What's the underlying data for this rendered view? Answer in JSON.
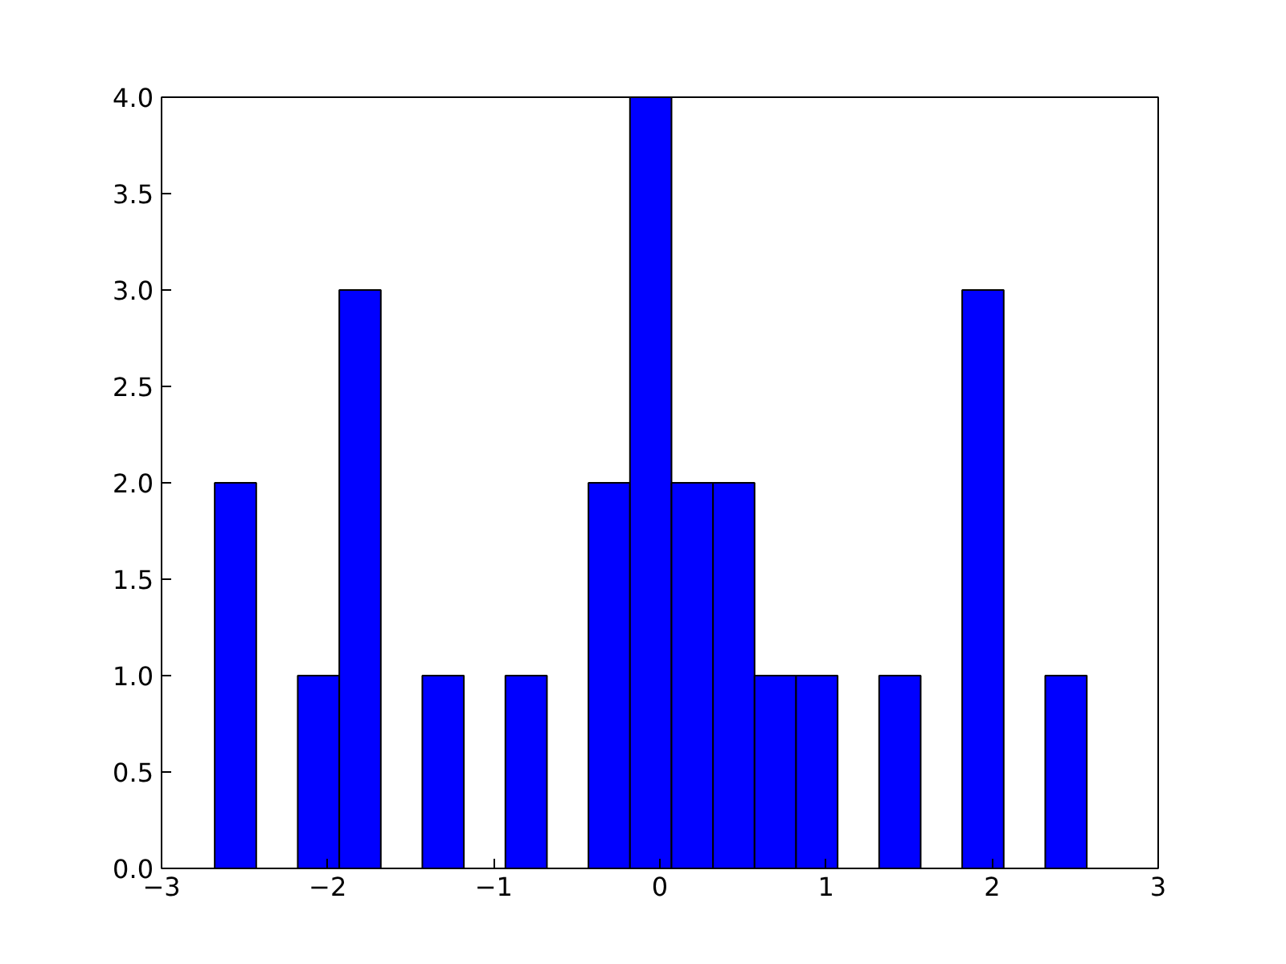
{
  "chart_data": {
    "type": "histogram",
    "color": "#0000ff",
    "bins": [
      -2.68,
      -2.43,
      -2.18,
      -1.93,
      -1.68,
      -1.43,
      -1.18,
      -0.93,
      -0.68,
      -0.43,
      -0.18,
      0.07,
      0.32,
      0.57,
      0.82,
      1.07,
      1.32,
      1.57,
      1.82,
      2.07,
      2.32,
      2.57
    ],
    "values": [
      2,
      0,
      1,
      3,
      0,
      1,
      0,
      1,
      0,
      2,
      4,
      2,
      2,
      1,
      1,
      0,
      1,
      0,
      3,
      0,
      1
    ],
    "xlim": [
      -3,
      3
    ],
    "xticks": [
      {
        "value": -3,
        "label": "−3"
      },
      {
        "value": -2,
        "label": "−2"
      },
      {
        "value": -1,
        "label": "−1"
      },
      0,
      1,
      2,
      3
    ],
    "ylim": [
      0,
      4
    ],
    "yticks": [
      {
        "value": 0,
        "label": "0.0"
      },
      {
        "value": 0.5,
        "label": "0.5"
      },
      {
        "value": 1,
        "label": "1.0"
      },
      {
        "value": 1.5,
        "label": "1.5"
      },
      {
        "value": 2,
        "label": "2.0"
      },
      {
        "value": 2.5,
        "label": "2.5"
      },
      {
        "value": 3,
        "label": "3.0"
      },
      {
        "value": 3.5,
        "label": "3.5"
      },
      {
        "value": 4,
        "label": "4.0"
      }
    ],
    "grid": false
  }
}
